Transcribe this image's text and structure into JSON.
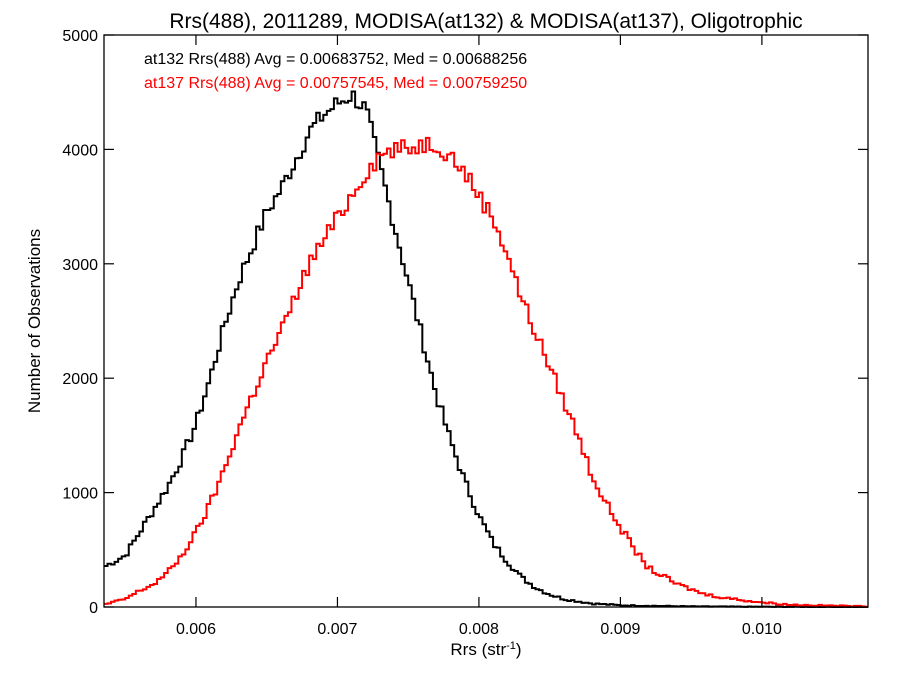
{
  "chart_data": {
    "type": "line",
    "title": "Rrs(488), 2011289, MODISA(at132) & MODISA(at137), Oligotrophic",
    "xlabel": "Rrs (str",
    "xlabel_sup": "-1",
    "xlabel_close": ")",
    "ylabel": "Number of Observations",
    "xlim": [
      0.00535,
      0.01075
    ],
    "ylim": [
      0,
      5000
    ],
    "x_ticks": [
      0.006,
      0.007,
      0.008,
      0.009,
      0.01
    ],
    "x_tick_labels": [
      "0.006",
      "0.007",
      "0.008",
      "0.009",
      "0.010"
    ],
    "y_ticks": [
      0,
      1000,
      2000,
      3000,
      4000,
      5000
    ],
    "y_tick_labels": [
      "0",
      "1000",
      "2000",
      "3000",
      "4000",
      "5000"
    ],
    "grid": false,
    "legend_placement": "top-left",
    "series": [
      {
        "name": "at132",
        "color": "#000000",
        "legend_text": "at132 Rrs(488) Avg = 0.00683752, Med = 0.00688256",
        "x": [
          0.00535,
          0.0055,
          0.0056,
          0.0057,
          0.0058,
          0.0059,
          0.006,
          0.0061,
          0.0062,
          0.0063,
          0.0064,
          0.0065,
          0.0066,
          0.0067,
          0.0068,
          0.0069,
          0.007,
          0.0071,
          0.0072,
          0.00725,
          0.0073,
          0.0074,
          0.0075,
          0.0076,
          0.0077,
          0.0078,
          0.0079,
          0.008,
          0.0081,
          0.0082,
          0.0083,
          0.0084,
          0.0085,
          0.0086,
          0.0088,
          0.009,
          0.0095,
          0.01,
          0.01075
        ],
        "y": [
          350,
          450,
          650,
          850,
          1050,
          1300,
          1600,
          2000,
          2450,
          2850,
          3150,
          3450,
          3650,
          3900,
          4150,
          4300,
          4400,
          4480,
          4350,
          4100,
          3850,
          3350,
          2850,
          2350,
          1850,
          1450,
          1100,
          800,
          560,
          400,
          260,
          170,
          110,
          70,
          30,
          15,
          5,
          2,
          0
        ]
      },
      {
        "name": "at137",
        "color": "#ff0000",
        "legend_text": "at137 Rrs(488) Avg = 0.00757545, Med = 0.00759250",
        "x": [
          0.00535,
          0.0055,
          0.0056,
          0.0057,
          0.0058,
          0.0059,
          0.006,
          0.0061,
          0.0062,
          0.0063,
          0.0064,
          0.0065,
          0.0066,
          0.0067,
          0.0068,
          0.0069,
          0.007,
          0.0071,
          0.0072,
          0.0073,
          0.0074,
          0.0075,
          0.0076,
          0.0077,
          0.0078,
          0.0079,
          0.008,
          0.0081,
          0.0082,
          0.0083,
          0.0084,
          0.0085,
          0.0086,
          0.0087,
          0.0088,
          0.0089,
          0.009,
          0.0091,
          0.0092,
          0.0094,
          0.0096,
          0.0098,
          0.01,
          0.0102,
          0.01075
        ],
        "y": [
          20,
          70,
          140,
          200,
          300,
          450,
          650,
          900,
          1200,
          1550,
          1850,
          2150,
          2400,
          2700,
          3000,
          3200,
          3400,
          3600,
          3800,
          3950,
          4000,
          4000,
          4050,
          4050,
          3950,
          3800,
          3600,
          3400,
          3100,
          2700,
          2400,
          2100,
          1800,
          1500,
          1150,
          900,
          700,
          500,
          340,
          200,
          110,
          70,
          40,
          20,
          5
        ]
      }
    ]
  }
}
